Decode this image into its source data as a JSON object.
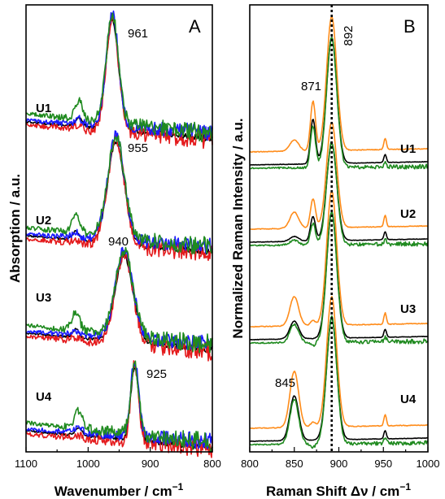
{
  "chart_data": [
    {
      "panel": "A",
      "type": "line",
      "xlabel": "Wavenumber / cm",
      "xlabel_sup": "−1",
      "ylabel": "Absorption / a.u.",
      "xlim": [
        1100,
        800
      ],
      "x_ticks": [
        "1100",
        "1000",
        "900",
        "800"
      ],
      "series_colors": {
        "black": "#000000",
        "red": "#e41a1c",
        "blue": "#1a1aff",
        "green": "#1f8a1f"
      },
      "samples": [
        {
          "label": "U1",
          "peak": "961"
        },
        {
          "label": "U2",
          "peak": "955"
        },
        {
          "label": "U3",
          "peak": "940"
        },
        {
          "label": "U4",
          "peak": "925"
        }
      ]
    },
    {
      "panel": "B",
      "type": "line",
      "xlabel": "Raman Shift Δν / cm",
      "xlabel_sup": "−1",
      "ylabel": "Normalized Raman Intensity / a.u.",
      "xlim": [
        800,
        1000
      ],
      "x_ticks": [
        "800",
        "850",
        "900",
        "950",
        "1000"
      ],
      "reference_line_x": 892,
      "series_colors": {
        "black": "#000000",
        "orange": "#ff8c1a",
        "green": "#1f8a1f"
      },
      "peak_labels": [
        "871",
        "892",
        "845"
      ],
      "samples": [
        {
          "label": "U1"
        },
        {
          "label": "U2"
        },
        {
          "label": "U3"
        },
        {
          "label": "U4"
        }
      ]
    }
  ]
}
